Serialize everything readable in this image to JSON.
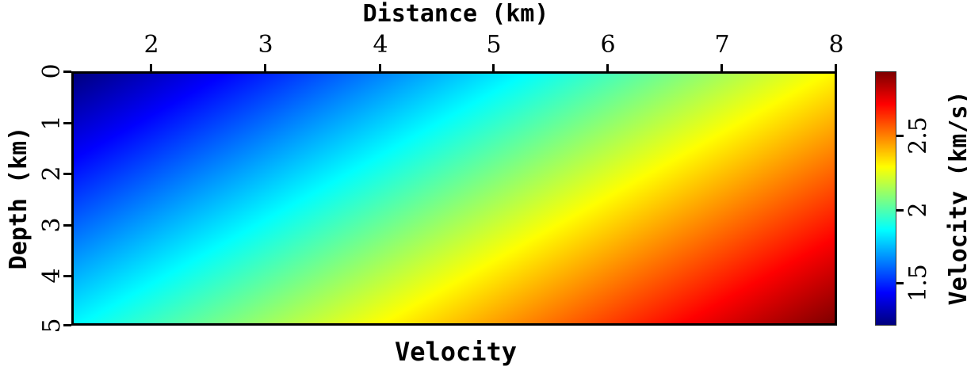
{
  "chart_data": {
    "type": "heatmap",
    "title": "Velocity",
    "xlabel": "Distance (km)",
    "ylabel": "Depth (km)",
    "colorbar_label": "Velocity (km/s)",
    "colormap": "jet",
    "x_axis_position": "top",
    "xlim": [
      1.31,
      8.0
    ],
    "ylim": [
      0,
      5
    ],
    "y_inverted": true,
    "x_ticks": [
      2,
      3,
      4,
      5,
      6,
      7,
      8
    ],
    "x_tick_labels": [
      "2",
      "3",
      "4",
      "5",
      "6",
      "7",
      "8"
    ],
    "y_ticks": [
      0,
      1,
      2,
      3,
      4,
      5
    ],
    "y_tick_labels": [
      "0",
      "1",
      "2",
      "3",
      "4",
      "5"
    ],
    "colorbar_range": [
      1.22,
      2.93
    ],
    "colorbar_ticks": [
      1.5,
      2.0,
      2.5
    ],
    "colorbar_tick_labels": [
      "1.5",
      "2",
      "2.5"
    ],
    "field_description": "Linear velocity gradient increasing with both depth and distance; minimum ~1.22 km/s at top-left (x≈1.3 km, z=0), maximum ~2.9 km/s at bottom-right (x=8 km, z=5 km).",
    "corner_values": {
      "top_left": 1.22,
      "top_right": 2.3,
      "bottom_left": 1.85,
      "bottom_right": 2.93
    },
    "grid": false,
    "legend": "colorbar right"
  },
  "labels": {
    "xlabel": "Distance (km)",
    "ylabel": "Depth (km)",
    "title": "Velocity",
    "colorbar": "Velocity (km/s)",
    "x_ticks": [
      "2",
      "3",
      "4",
      "5",
      "6",
      "7",
      "8"
    ],
    "y_ticks": [
      "0",
      "1",
      "2",
      "3",
      "4",
      "5"
    ],
    "cb_ticks": [
      "1.5",
      "2",
      "2.5"
    ]
  },
  "colors": {
    "jet_stops": [
      "#00007f",
      "#0000ff",
      "#007fff",
      "#00ffff",
      "#7fff7f",
      "#ffff00",
      "#ff7f00",
      "#ff0000",
      "#7f0000"
    ]
  }
}
